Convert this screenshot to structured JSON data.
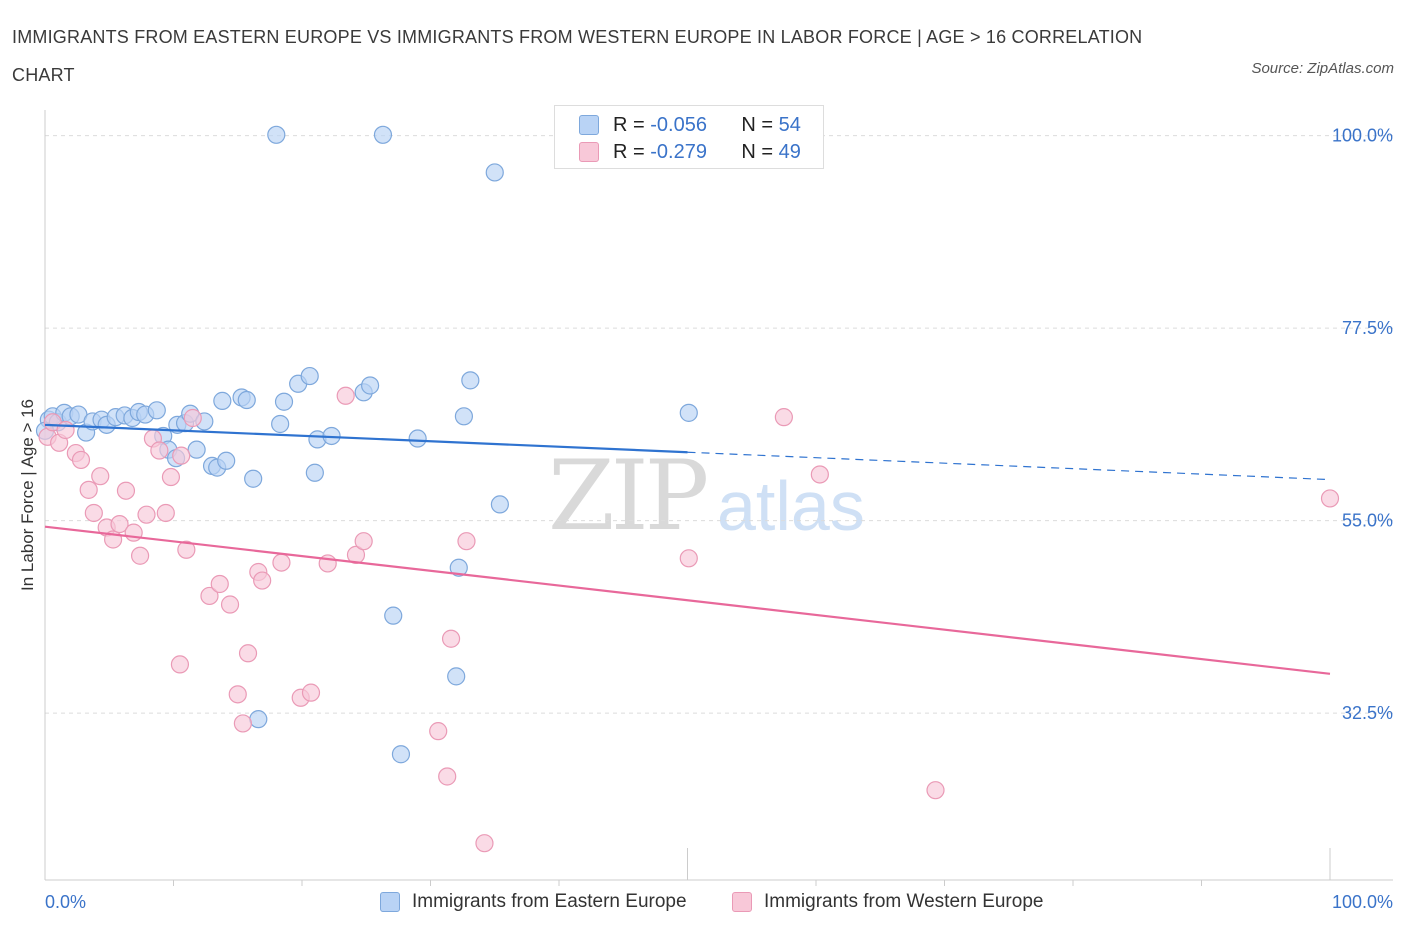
{
  "title": "IMMIGRANTS FROM EASTERN EUROPE VS IMMIGRANTS FROM WESTERN EUROPE IN LABOR FORCE | AGE > 16 CORRELATION CHART",
  "source": "Source: ZipAtlas.com",
  "watermark": {
    "zip": "ZIP",
    "atlas": "atlas"
  },
  "legend": {
    "r_label": "R =",
    "n_label": "N =",
    "eastern": {
      "r": "-0.056",
      "n": "54"
    },
    "western": {
      "r": "-0.279",
      "n": "49"
    }
  },
  "colors": {
    "eastern_fill": "#b9d3f5",
    "eastern_stroke": "#7ea8dc",
    "eastern_line": "#2f73d0",
    "western_fill": "#f8c8d8",
    "western_stroke": "#ea9ab6",
    "western_line": "#e8689a",
    "axis_text": "#3a73c9"
  },
  "chart_data": {
    "type": "scatter",
    "title": "IMMIGRANTS FROM EASTERN EUROPE VS IMMIGRANTS FROM WESTERN EUROPE IN LABOR FORCE | AGE > 16 CORRELATION CHART",
    "xlabel": "",
    "ylabel": "In Labor Force | Age > 16",
    "xlim": [
      0,
      100
    ],
    "ylim": [
      13,
      103
    ],
    "x_tick_labels": [
      "0.0%",
      "100.0%"
    ],
    "y_ticks": [
      32.5,
      55.0,
      77.5,
      100.0
    ],
    "y_tick_labels": [
      "32.5%",
      "55.0%",
      "77.5%",
      "100.0%"
    ],
    "grid": true,
    "legend_position": "top-center",
    "series": [
      {
        "name": "Immigrants from Eastern Europe",
        "points": [
          [
            0.3,
            66.8
          ],
          [
            0.6,
            67.2
          ],
          [
            1.0,
            66.5
          ],
          [
            1.5,
            67.6
          ],
          [
            2.0,
            67.2
          ],
          [
            2.6,
            67.4
          ],
          [
            3.2,
            65.3
          ],
          [
            3.7,
            66.6
          ],
          [
            4.4,
            66.8
          ],
          [
            4.8,
            66.2
          ],
          [
            5.5,
            67.1
          ],
          [
            6.2,
            67.3
          ],
          [
            6.8,
            67.0
          ],
          [
            7.3,
            67.7
          ],
          [
            7.8,
            67.4
          ],
          [
            8.7,
            67.9
          ],
          [
            9.2,
            64.9
          ],
          [
            9.6,
            63.3
          ],
          [
            10.2,
            62.3
          ],
          [
            10.3,
            66.2
          ],
          [
            10.9,
            66.4
          ],
          [
            11.3,
            67.5
          ],
          [
            11.8,
            63.3
          ],
          [
            12.4,
            66.6
          ],
          [
            13.0,
            61.4
          ],
          [
            13.4,
            61.2
          ],
          [
            14.1,
            62.0
          ],
          [
            13.8,
            69.0
          ],
          [
            15.3,
            69.4
          ],
          [
            15.7,
            69.1
          ],
          [
            16.2,
            59.9
          ],
          [
            18.0,
            100.1
          ],
          [
            18.3,
            66.3
          ],
          [
            18.6,
            68.9
          ],
          [
            19.7,
            71.0
          ],
          [
            20.6,
            71.9
          ],
          [
            21.0,
            60.6
          ],
          [
            21.2,
            64.5
          ],
          [
            22.3,
            64.9
          ],
          [
            24.8,
            70.0
          ],
          [
            25.3,
            70.8
          ],
          [
            26.3,
            100.1
          ],
          [
            29.0,
            64.6
          ],
          [
            32.6,
            67.2
          ],
          [
            33.1,
            71.4
          ],
          [
            35.0,
            95.7
          ],
          [
            35.4,
            56.9
          ],
          [
            32.2,
            49.5
          ],
          [
            27.1,
            43.9
          ],
          [
            32.0,
            36.8
          ],
          [
            27.7,
            27.7
          ],
          [
            16.6,
            31.8
          ],
          [
            50.1,
            67.6
          ],
          [
            0.0,
            65.5
          ]
        ]
      },
      {
        "name": "Immigrants from Western Europe",
        "points": [
          [
            0.2,
            64.8
          ],
          [
            0.6,
            66.5
          ],
          [
            1.1,
            64.1
          ],
          [
            1.6,
            65.6
          ],
          [
            2.4,
            62.9
          ],
          [
            2.8,
            62.1
          ],
          [
            3.4,
            58.6
          ],
          [
            3.8,
            55.9
          ],
          [
            4.3,
            60.2
          ],
          [
            4.8,
            54.2
          ],
          [
            5.3,
            52.8
          ],
          [
            5.8,
            54.6
          ],
          [
            6.3,
            58.5
          ],
          [
            6.9,
            53.6
          ],
          [
            7.4,
            50.9
          ],
          [
            7.9,
            55.7
          ],
          [
            8.4,
            64.6
          ],
          [
            8.9,
            63.2
          ],
          [
            9.4,
            55.9
          ],
          [
            9.8,
            60.1
          ],
          [
            10.6,
            62.6
          ],
          [
            11.5,
            67.0
          ],
          [
            11.0,
            51.6
          ],
          [
            10.5,
            38.2
          ],
          [
            12.8,
            46.2
          ],
          [
            13.6,
            47.6
          ],
          [
            14.4,
            45.2
          ],
          [
            15.0,
            34.7
          ],
          [
            15.4,
            31.3
          ],
          [
            15.8,
            39.5
          ],
          [
            16.6,
            49.0
          ],
          [
            16.9,
            48.0
          ],
          [
            18.4,
            50.1
          ],
          [
            19.9,
            34.3
          ],
          [
            20.7,
            34.9
          ],
          [
            22.0,
            50.0
          ],
          [
            23.4,
            69.6
          ],
          [
            24.2,
            51.0
          ],
          [
            24.8,
            52.6
          ],
          [
            30.6,
            30.4
          ],
          [
            31.3,
            25.1
          ],
          [
            31.6,
            41.2
          ],
          [
            32.8,
            52.6
          ],
          [
            34.2,
            17.3
          ],
          [
            50.1,
            50.6
          ],
          [
            57.5,
            67.1
          ],
          [
            60.3,
            60.4
          ],
          [
            69.3,
            23.5
          ],
          [
            100.0,
            57.6
          ]
        ]
      }
    ],
    "trendlines": [
      {
        "series": "Immigrants from Eastern Europe",
        "x": [
          0,
          50,
          100
        ],
        "y": [
          66.2,
          63.0,
          59.8
        ],
        "solid_until": 50
      },
      {
        "series": "Immigrants from Western Europe",
        "x": [
          0,
          100
        ],
        "y": [
          54.3,
          37.1
        ]
      }
    ]
  }
}
